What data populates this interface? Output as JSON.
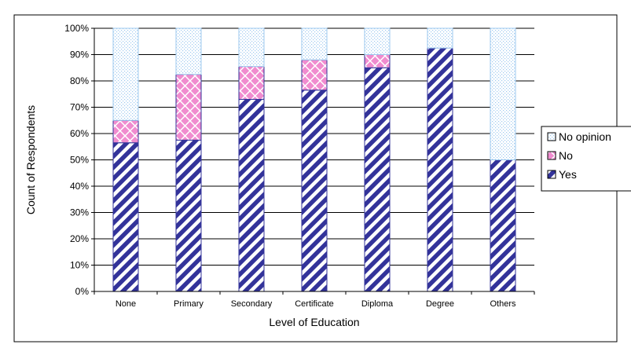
{
  "chart_data": {
    "type": "bar",
    "stacked": true,
    "categories": [
      "None",
      "Primary",
      "Secondary",
      "Certificate",
      "Diploma",
      "Degree",
      "Others"
    ],
    "series": [
      {
        "name": "Yes",
        "values": [
          56.5,
          57.5,
          73,
          76.5,
          85,
          92.5,
          50
        ],
        "pattern": "diagonal-stripes",
        "color": "#33339a",
        "color2": "#ffffff"
      },
      {
        "name": "No",
        "values": [
          8.5,
          25,
          12.5,
          11.5,
          5,
          0,
          0
        ],
        "pattern": "crosshatch",
        "color": "#f08ccf",
        "color2": "#ffffff"
      },
      {
        "name": "No opinion",
        "values": [
          35,
          17.5,
          14.5,
          12,
          10,
          7.5,
          50
        ],
        "pattern": "dots",
        "color": "#ffffff",
        "color2": "#9ec9ef"
      }
    ],
    "xlabel": "Level of Education",
    "ylabel": "Count of Respondents",
    "ylim": [
      0,
      100
    ],
    "yticks": [
      "0%",
      "10%",
      "20%",
      "30%",
      "40%",
      "50%",
      "60%",
      "70%",
      "80%",
      "90%",
      "100%"
    ],
    "grid": true,
    "legend_position": "right",
    "border_color": "#000000",
    "gridline_color": "#000000"
  }
}
